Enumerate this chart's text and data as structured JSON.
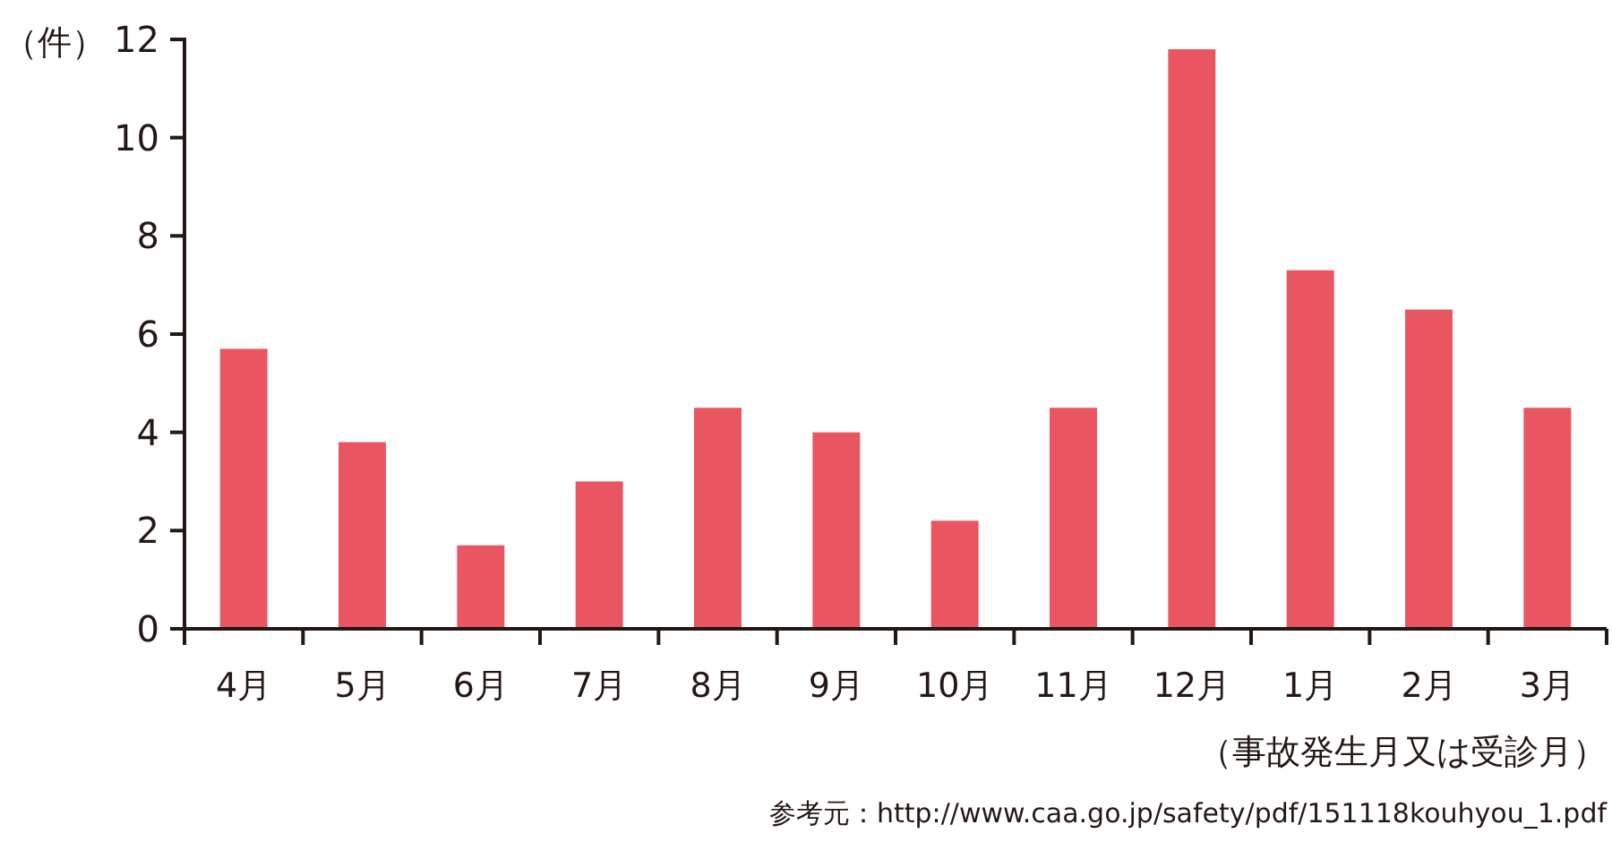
{
  "chart_data": {
    "type": "bar",
    "categories": [
      "4月",
      "5月",
      "6月",
      "7月",
      "8月",
      "9月",
      "10月",
      "11月",
      "12月",
      "1月",
      "2月",
      "3月"
    ],
    "values": [
      5.7,
      3.8,
      1.7,
      3.0,
      4.5,
      4.0,
      2.2,
      4.5,
      11.8,
      7.3,
      6.5,
      4.5
    ],
    "color": "#e95560",
    "ylabel": "（件）",
    "xlabel": "（事故発生月又は受診月）",
    "ylim": [
      0,
      12
    ],
    "yticks": [
      0,
      2,
      4,
      6,
      8,
      10,
      12
    ],
    "grid": false,
    "annotations": [
      "参考元：http://www.caa.go.jp/safety/pdf/151118kouhyou_1.pdf"
    ]
  }
}
